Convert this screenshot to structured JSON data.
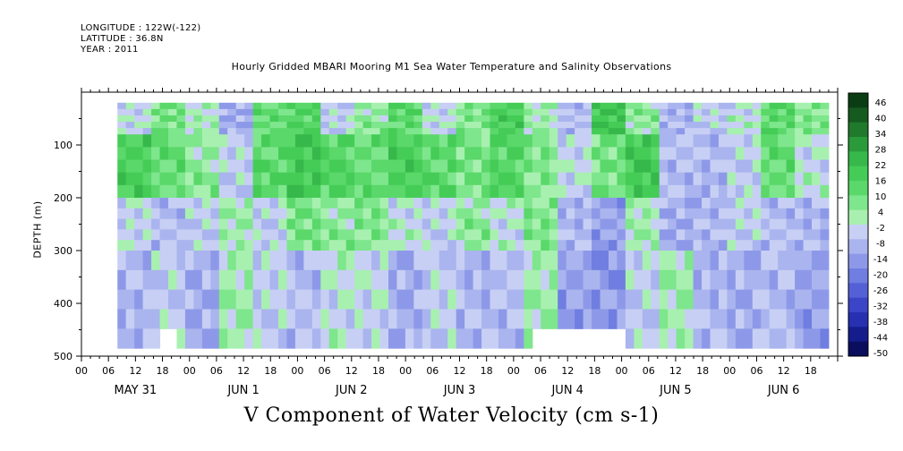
{
  "header": {
    "longitude": "LONGITUDE : 122W(-122)",
    "latitude": "LATITUDE : 36.8N",
    "year": "YEAR : 2011"
  },
  "chart_data": {
    "type": "heatmap",
    "title": "Hourly Gridded MBARI Mooring M1 Sea Water Temperature and Salinity Observations",
    "xlabel": "V Component of Water Velocity (cm s-1)",
    "ylabel": "DEPTH (m)",
    "x_axis": {
      "start": "May 31 00:00",
      "end": "Jun 6 22:00",
      "unit": "hour",
      "hour_ticks": [
        "00",
        "06",
        "12",
        "18",
        "00",
        "06",
        "12",
        "18",
        "00",
        "06",
        "12",
        "18",
        "00",
        "06",
        "12",
        "18",
        "00",
        "06",
        "12",
        "18",
        "00",
        "06",
        "12",
        "18",
        "00",
        "06",
        "12",
        "18"
      ],
      "day_labels": [
        "MAY 31",
        "JUN  1",
        "JUN  2",
        "JUN  3",
        "JUN  4",
        "JUN  5",
        "JUN  6"
      ]
    },
    "y_axis": {
      "range": [
        500,
        0
      ],
      "ticks": [
        100,
        200,
        300,
        400,
        500
      ],
      "data_extent": [
        20,
        485
      ]
    },
    "colorbar": {
      "labels": [
        "46",
        "40",
        "34",
        "28",
        "22",
        "16",
        "10",
        "4",
        "-2",
        "-8",
        "-14",
        "-20",
        "-26",
        "-32",
        "-38",
        "-44",
        "-50"
      ],
      "colors": [
        "#0a3d14",
        "#155a1f",
        "#1f7a2c",
        "#2a9a3a",
        "#37b84a",
        "#45cc57",
        "#5ad86a",
        "#7ee68c",
        "#a8f0b0",
        "#c7cff4",
        "#aab4ee",
        "#8d99e8",
        "#6f7ee0",
        "#5461d6",
        "#3b45c8",
        "#2630b0",
        "#151c8c",
        "#0a0e5c"
      ]
    },
    "series": [
      {
        "depth_band": "20-80",
        "pattern": [
          "-4",
          "8",
          "0",
          "-12",
          "10",
          "14",
          "-6",
          "4",
          "12",
          "-4",
          "6",
          "16",
          "2",
          "-8",
          "20",
          "4",
          "-10",
          "-6",
          "-2",
          "12",
          "6"
        ]
      },
      {
        "depth_band": "80-200",
        "pattern": [
          "16",
          "10",
          "4",
          "-6",
          "12",
          "18",
          "14",
          "10",
          "16",
          "12",
          "8",
          "14",
          "6",
          "-4",
          "8",
          "18",
          "-8",
          "-10",
          "-6",
          "10",
          "-2"
        ]
      },
      {
        "depth_band": "200-300",
        "pattern": [
          "-4",
          "-8",
          "-6",
          "2",
          "-6",
          "8",
          "4",
          "6",
          "-2",
          "-6",
          "4",
          "-2",
          "6",
          "-10",
          "-14",
          "2",
          "-12",
          "-10",
          "-6",
          "-8",
          "-10"
        ]
      },
      {
        "depth_band": "300-485",
        "pattern": [
          "-10",
          "-6",
          "-12",
          "2",
          "-6",
          "-8",
          "-2",
          "-4",
          "-12",
          "-6",
          "-10",
          "-8",
          "2",
          "-14",
          "-16",
          "-6",
          "2",
          "-10",
          "-12",
          "-8",
          "-14"
        ]
      }
    ]
  }
}
